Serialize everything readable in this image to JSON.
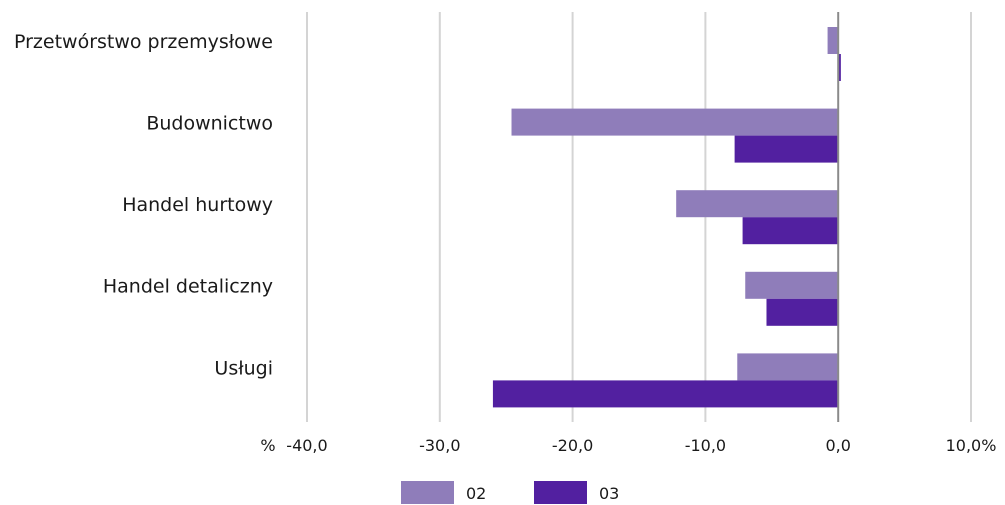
{
  "chart_data": {
    "type": "bar",
    "orientation": "horizontal",
    "categories": [
      "Przetwórstwo przemysłowe",
      "Budownictwo",
      "Handel hurtowy",
      "Handel detaliczny",
      "Usługi"
    ],
    "series": [
      {
        "name": "02",
        "color": "#8f7dba",
        "values": [
          -0.8,
          -24.6,
          -12.2,
          -7.0,
          -7.6
        ]
      },
      {
        "name": "03",
        "color": "#5220a0",
        "values": [
          0.2,
          -7.8,
          -7.2,
          -5.4,
          -26.0
        ]
      }
    ],
    "xlim": [
      -40,
      10
    ],
    "ticks": [
      -40,
      -30,
      -20,
      -10,
      0,
      10
    ],
    "tick_labels": [
      "-40,0",
      "-30,0",
      "-20,0",
      "-10,0",
      "0,0",
      "10,0%"
    ],
    "unit_label": "%",
    "grid": true,
    "legend_position": "bottom"
  }
}
